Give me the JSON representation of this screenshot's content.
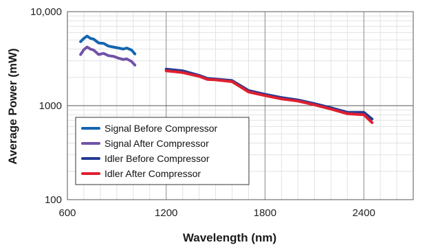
{
  "chart_data": {
    "type": "line",
    "title": "",
    "xlabel": "Wavelength (nm)",
    "ylabel": "Average Power (mW)",
    "xlim": [
      600,
      2700
    ],
    "ylim": [
      100,
      10000
    ],
    "yscale": "log",
    "grid": true,
    "legend_position": "bottom-left",
    "x_ticks": [
      600,
      1200,
      1800,
      2400
    ],
    "x_tick_labels": [
      "600",
      "1200",
      "1800",
      "2400"
    ],
    "y_ticks": [
      100,
      1000,
      10000
    ],
    "y_tick_labels": [
      "100",
      "1000",
      "10,000"
    ],
    "series": [
      {
        "name": "Signal Before Compressor",
        "color": "#1565b0",
        "x": [
          680,
          700,
          720,
          740,
          760,
          790,
          820,
          850,
          880,
          910,
          940,
          960,
          990,
          1010
        ],
        "y": [
          4800,
          5200,
          5500,
          5200,
          5100,
          4650,
          4600,
          4300,
          4200,
          4100,
          4000,
          4100,
          3900,
          3550
        ]
      },
      {
        "name": "Signal After Compressor",
        "color": "#7152a8",
        "x": [
          680,
          700,
          720,
          740,
          760,
          790,
          820,
          850,
          880,
          910,
          940,
          960,
          990,
          1010
        ],
        "y": [
          3500,
          3950,
          4200,
          4000,
          3900,
          3500,
          3600,
          3400,
          3350,
          3200,
          3100,
          3150,
          2950,
          2700
        ]
      },
      {
        "name": "Idler Before Compressor",
        "color": "#233a93",
        "x": [
          1200,
          1300,
          1400,
          1450,
          1500,
          1600,
          1700,
          1800,
          1900,
          2000,
          2100,
          2200,
          2300,
          2400,
          2450
        ],
        "y": [
          2450,
          2350,
          2100,
          1950,
          1920,
          1850,
          1450,
          1320,
          1220,
          1150,
          1050,
          950,
          850,
          850,
          720
        ]
      },
      {
        "name": "Idler After Compressor",
        "color": "#e01f2f",
        "x": [
          1200,
          1300,
          1400,
          1450,
          1500,
          1600,
          1700,
          1800,
          1900,
          2000,
          2100,
          2200,
          2300,
          2400,
          2450
        ],
        "y": [
          2350,
          2250,
          2050,
          1900,
          1880,
          1800,
          1400,
          1280,
          1180,
          1120,
          1020,
          920,
          820,
          800,
          660
        ]
      }
    ]
  }
}
